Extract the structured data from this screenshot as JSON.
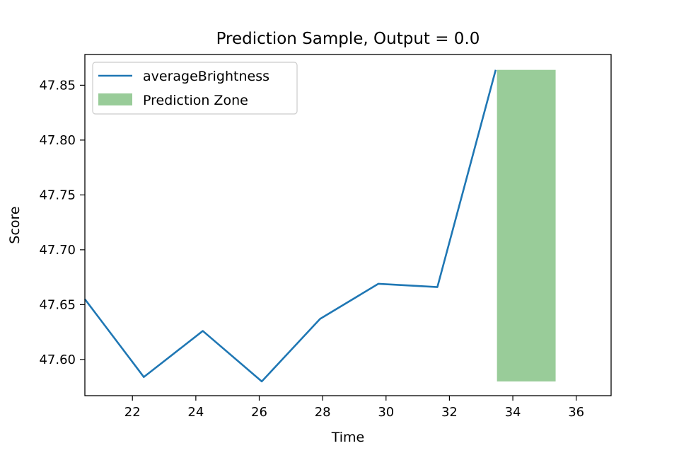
{
  "chart_data": {
    "type": "line",
    "title": "Prediction Sample, Output = 0.0",
    "xlabel": "Time",
    "ylabel": "Score",
    "xlim": [
      20.5,
      37.1
    ],
    "ylim": [
      47.567,
      47.878
    ],
    "xticks": [
      22,
      24,
      26,
      28,
      30,
      32,
      34,
      36
    ],
    "yticks": [
      47.6,
      47.65,
      47.7,
      47.75,
      47.8,
      47.85
    ],
    "grid": false,
    "legend_placement": "top-left",
    "series": [
      {
        "name": "averageBrightness",
        "color": "#1f77b4",
        "x": [
          20.5,
          22.36,
          24.22,
          26.08,
          27.92,
          29.76,
          31.62,
          33.46
        ],
        "y": [
          47.655,
          47.584,
          47.626,
          47.58,
          47.637,
          47.669,
          47.666,
          47.864
        ]
      }
    ],
    "zones": [
      {
        "name": "Prediction Zone",
        "color": "#99cc99",
        "x_start": 33.5,
        "x_end": 35.35,
        "y_start": 47.58,
        "y_end": 47.864
      }
    ]
  }
}
